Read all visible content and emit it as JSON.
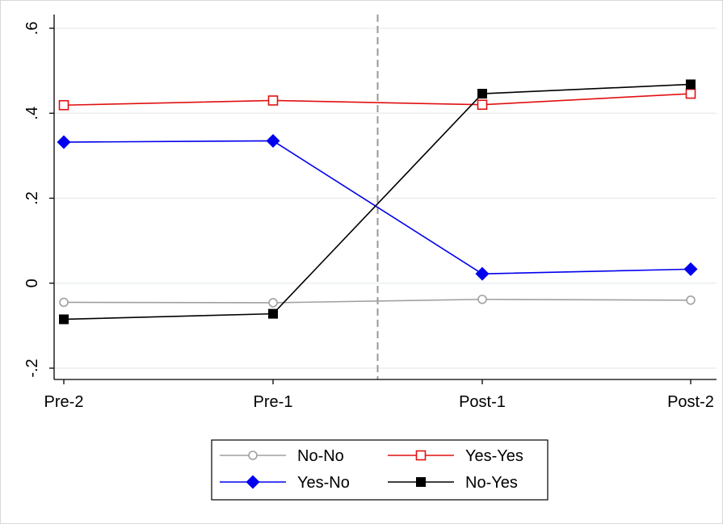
{
  "chart_data": {
    "type": "line",
    "categories": [
      "Pre-2",
      "Pre-1",
      "Post-1",
      "Post-2"
    ],
    "ylim": [
      -0.2,
      0.6
    ],
    "yticks": [
      {
        "value": -0.2,
        "label": "-.2"
      },
      {
        "value": 0,
        "label": "0"
      },
      {
        "value": 0.2,
        "label": ".2"
      },
      {
        "value": 0.4,
        "label": ".4"
      },
      {
        "value": 0.6,
        "label": ".6"
      }
    ],
    "grid": true,
    "vline": {
      "x": 1.5,
      "style": "dashed",
      "color": "#999999"
    },
    "legend_position": "bottom",
    "series": [
      {
        "name": "No-No",
        "values": [
          -0.045,
          -0.046,
          -0.038,
          -0.04
        ],
        "color": "#a0a0a0",
        "marker": "circle-hollow"
      },
      {
        "name": "Yes-Yes",
        "values": [
          0.419,
          0.43,
          0.42,
          0.446
        ],
        "color": "#e01010",
        "marker": "square-hollow"
      },
      {
        "name": "Yes-No",
        "values": [
          0.332,
          0.335,
          0.022,
          0.033
        ],
        "color": "#0000ee",
        "marker": "diamond"
      },
      {
        "name": "No-Yes",
        "values": [
          -0.085,
          -0.072,
          0.446,
          0.468
        ],
        "color": "#000000",
        "marker": "square"
      }
    ]
  }
}
